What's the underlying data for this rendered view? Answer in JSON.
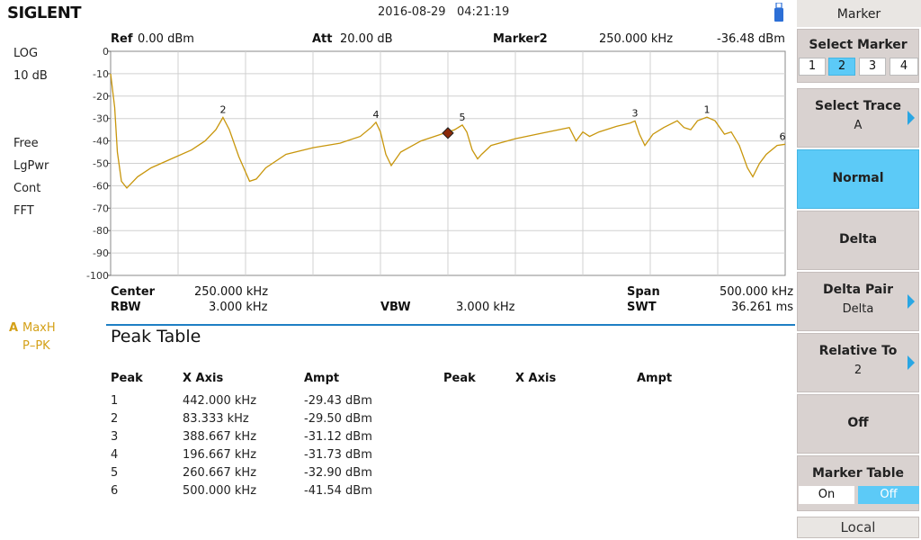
{
  "header": {
    "brand": "SIGLENT",
    "datetime": "2016-08-29   04:21:19"
  },
  "left_panel": {
    "scale_type": "LOG",
    "scale_div": "10 dB",
    "sweep": "Free",
    "detector_mode": "LgPwr",
    "trigger": "Cont",
    "fft": "FFT",
    "trace_letter": "A",
    "trace_mode": "MaxH",
    "trace_detector": "P–PK"
  },
  "top_info": {
    "ref_label": "Ref",
    "ref_value": "0.00 dBm",
    "att_label": "Att",
    "att_value": "20.00 dB",
    "marker_label": "Marker2",
    "marker_freq": "250.000 kHz",
    "marker_ampl": "-36.48 dBm"
  },
  "bottom_info": {
    "center_label": "Center",
    "center_value": "250.000 kHz",
    "span_label": "Span",
    "span_value": "500.000 kHz",
    "rbw_label": "RBW",
    "rbw_value": "3.000 kHz",
    "vbw_label": "VBW",
    "vbw_value": "3.000 kHz",
    "swt_label": "SWT",
    "swt_value": "36.261 ms"
  },
  "peak_table": {
    "title": "Peak Table",
    "headers": [
      "Peak",
      "X Axis",
      "Ampt",
      "Peak",
      "X Axis",
      "Ampt"
    ],
    "rows": [
      {
        "peak": "1",
        "x": "442.000 kHz",
        "ampt": "-29.43 dBm"
      },
      {
        "peak": "2",
        "x": "83.333 kHz",
        "ampt": "-29.50 dBm"
      },
      {
        "peak": "3",
        "x": "388.667 kHz",
        "ampt": "-31.12 dBm"
      },
      {
        "peak": "4",
        "x": "196.667 kHz",
        "ampt": "-31.73 dBm"
      },
      {
        "peak": "5",
        "x": "260.667 kHz",
        "ampt": "-32.90 dBm"
      },
      {
        "peak": "6",
        "x": "500.000 kHz",
        "ampt": "-41.54 dBm"
      }
    ]
  },
  "menu": {
    "title": "Marker",
    "select_marker_label": "Select Marker",
    "marker_options": [
      "1",
      "2",
      "3",
      "4"
    ],
    "selected_marker": "2",
    "select_trace_label": "Select Trace",
    "select_trace_value": "A",
    "normal_label": "Normal",
    "delta_label": "Delta",
    "delta_pair_label": "Delta Pair",
    "delta_pair_value": "Delta",
    "relative_to_label": "Relative To",
    "relative_to_value": "2",
    "off_label": "Off",
    "marker_table_label": "Marker Table",
    "marker_table_on": "On",
    "marker_table_off": "Off",
    "marker_table_state": "Off",
    "local_label": "Local"
  },
  "colors": {
    "trace": "#c8960c",
    "accent": "#5ccaf7",
    "grid": "#d0d0d0",
    "marker_diamond": "#8b2a0a"
  },
  "chart_data": {
    "type": "line",
    "y_ticks": [
      "0",
      "-10",
      "-20",
      "-30",
      "-40",
      "-50",
      "-60",
      "-70",
      "-80",
      "-90",
      "-100"
    ],
    "ylim": [
      -100,
      0
    ],
    "xlim": [
      0,
      500
    ],
    "x_unit": "kHz",
    "y_unit": "dBm",
    "series": [
      {
        "x": [
          0,
          3,
          5,
          8,
          12,
          20,
          30,
          45,
          60,
          70,
          78,
          83.3,
          88,
          95,
          103,
          108,
          115,
          130,
          150,
          170,
          185,
          193,
          196.7,
          200,
          204,
          208,
          215,
          230,
          245,
          255,
          260.7,
          264,
          268,
          272,
          275,
          282,
          300,
          320,
          340,
          345,
          350,
          355,
          362,
          375,
          385,
          388.7,
          392,
          396,
          402,
          410,
          420,
          425,
          430,
          435,
          442,
          448,
          455,
          460,
          466,
          472,
          476,
          481,
          486,
          494,
          500
        ],
        "y": [
          -10,
          -25,
          -45,
          -58,
          -61,
          -56,
          -52,
          -48,
          -44,
          -40,
          -35,
          -29.5,
          -35,
          -47,
          -58,
          -57,
          -52,
          -46,
          -43,
          -41,
          -38,
          -34,
          -31.7,
          -36,
          -46,
          -51,
          -45,
          -40,
          -37,
          -35,
          -32.9,
          -36,
          -44,
          -48,
          -46,
          -42,
          -39,
          -36.5,
          -34,
          -40,
          -36,
          -38,
          -36,
          -33.5,
          -32,
          -31.1,
          -37,
          -42,
          -37,
          -34,
          -31,
          -34,
          -35,
          -31,
          -29.4,
          -31,
          -37,
          -36,
          -42,
          -52,
          -56,
          -50,
          -46,
          -42,
          -41.5
        ]
      }
    ],
    "markers": [
      {
        "label": "1",
        "x": 442.0,
        "y": -29.43
      },
      {
        "label": "2",
        "x": 83.333,
        "y": -29.5
      },
      {
        "label": "3",
        "x": 388.667,
        "y": -31.12
      },
      {
        "label": "4",
        "x": 196.667,
        "y": -31.73
      },
      {
        "label": "5",
        "x": 260.667,
        "y": -32.9
      },
      {
        "label": "6",
        "x": 500.0,
        "y": -41.54
      }
    ],
    "active_marker": {
      "label": "2",
      "x": 250.0,
      "y": -36.48
    }
  }
}
